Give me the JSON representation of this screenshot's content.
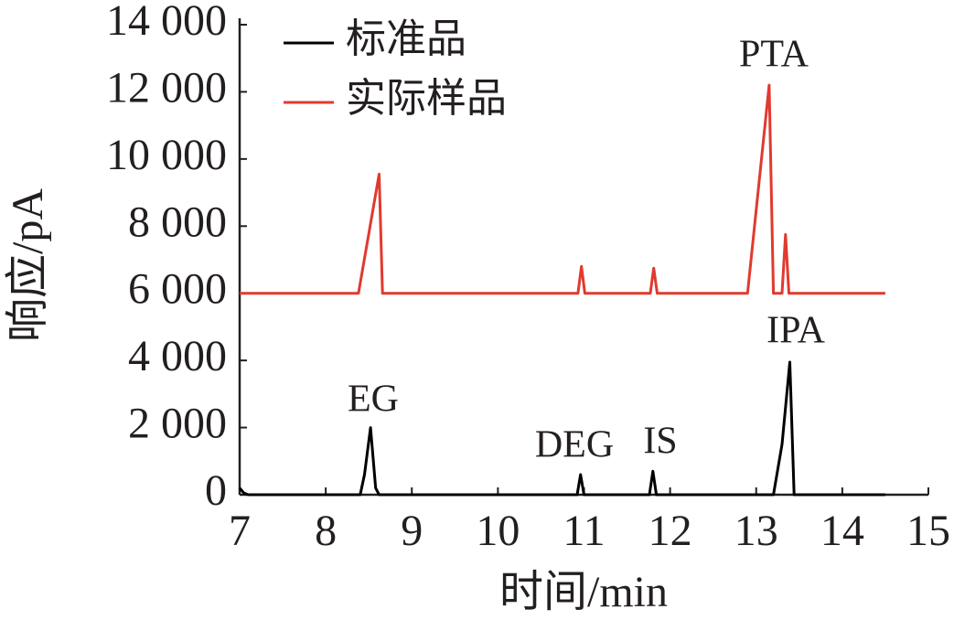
{
  "chart_data": {
    "type": "line",
    "xlabel": "时间/min",
    "ylabel": "响应/pA",
    "xlim": [
      7,
      15
    ],
    "xticks": [
      7,
      8,
      9,
      10,
      11,
      12,
      13,
      14,
      15
    ],
    "ylim": [
      0,
      14000
    ],
    "yticks": [
      0,
      {
        "value": 2000,
        "label": "2 000"
      },
      {
        "value": 4000,
        "label": "4 000"
      },
      {
        "value": 6000,
        "label": "6 000"
      },
      {
        "value": 8000,
        "label": "8 000"
      },
      {
        "value": 10000,
        "label": "10 000"
      },
      {
        "value": 12000,
        "label": "12 000"
      },
      {
        "value": 14000,
        "label": "14 000"
      }
    ],
    "legend": "upper left",
    "annotations": [
      "EG",
      "DEG",
      "IS",
      "IPA",
      "PTA"
    ],
    "series": [
      {
        "name": "标准品",
        "color": "#000000",
        "x": [
          7,
          7.05,
          7.1,
          8.4,
          8.45,
          8.52,
          8.58,
          8.62,
          10.92,
          10.96,
          11.0,
          11.76,
          11.8,
          11.84,
          13.2,
          13.3,
          13.39,
          13.44,
          14.5
        ],
        "values": [
          200,
          50,
          0,
          0,
          600,
          2000,
          200,
          0,
          0,
          600,
          0,
          0,
          700,
          0,
          0,
          1500,
          3950,
          0,
          0
        ]
      },
      {
        "name": "实际样品",
        "color": "#e03a2f",
        "x": [
          7,
          8.38,
          8.62,
          8.66,
          10.93,
          10.97,
          11.01,
          11.77,
          11.81,
          11.85,
          12.9,
          13.15,
          13.2,
          13.3,
          13.34,
          13.38,
          14.5
        ],
        "values": [
          6000,
          6000,
          9550,
          6000,
          6000,
          6800,
          6000,
          6000,
          6750,
          6000,
          6000,
          12200,
          6000,
          6000,
          7750,
          6000,
          6000
        ]
      }
    ]
  }
}
